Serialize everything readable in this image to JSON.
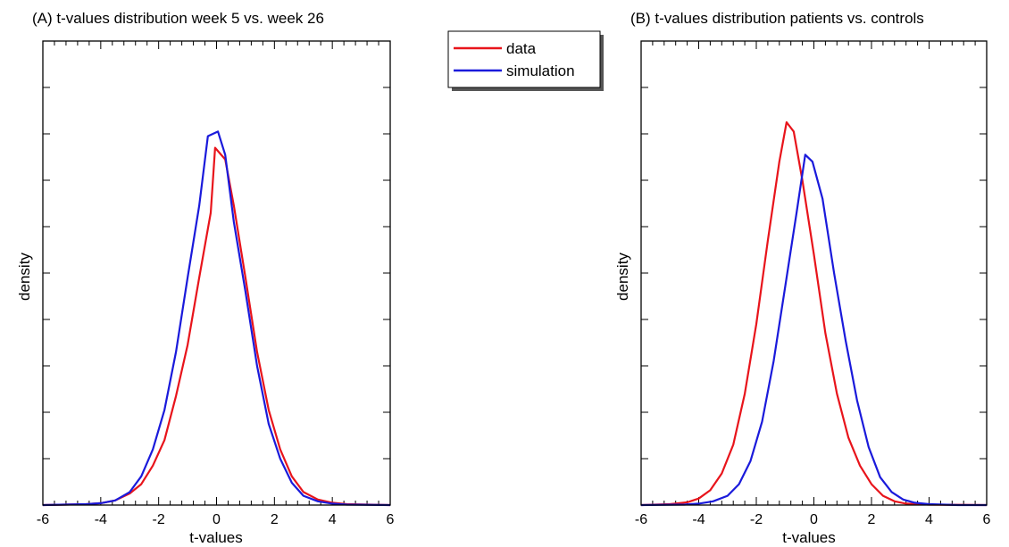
{
  "chart_data": [
    {
      "type": "line",
      "title": "(A) t-values distribution week 5 vs. week 26",
      "xlabel": "t-values",
      "ylabel": "density",
      "xlim": [
        -6,
        6
      ],
      "ylim": [
        0,
        1
      ],
      "x_ticks": [
        "-6",
        "-4",
        "-2",
        "0",
        "2",
        "4",
        "6"
      ],
      "y_tick_labels_shown": false,
      "series": [
        {
          "name": "data",
          "color": "#e8141b",
          "points": [
            [
              -6,
              0
            ],
            [
              -4.5,
              0.002
            ],
            [
              -4,
              0.004
            ],
            [
              -3.5,
              0.01
            ],
            [
              -3,
              0.025
            ],
            [
              -2.6,
              0.045
            ],
            [
              -2.2,
              0.085
            ],
            [
              -1.8,
              0.14
            ],
            [
              -1.4,
              0.235
            ],
            [
              -1.0,
              0.345
            ],
            [
              -0.6,
              0.49
            ],
            [
              -0.2,
              0.63
            ],
            [
              -0.05,
              0.77
            ],
            [
              0.3,
              0.745
            ],
            [
              0.6,
              0.645
            ],
            [
              1.0,
              0.49
            ],
            [
              1.4,
              0.33
            ],
            [
              1.8,
              0.205
            ],
            [
              2.2,
              0.12
            ],
            [
              2.6,
              0.062
            ],
            [
              3.0,
              0.028
            ],
            [
              3.5,
              0.012
            ],
            [
              4.0,
              0.005
            ],
            [
              4.5,
              0.002
            ],
            [
              6,
              0
            ]
          ]
        },
        {
          "name": "simulation",
          "color": "#1a1adb",
          "points": [
            [
              -6,
              0
            ],
            [
              -4.5,
              0.002
            ],
            [
              -4,
              0.004
            ],
            [
              -3.5,
              0.01
            ],
            [
              -3,
              0.028
            ],
            [
              -2.6,
              0.062
            ],
            [
              -2.2,
              0.12
            ],
            [
              -1.8,
              0.205
            ],
            [
              -1.4,
              0.33
            ],
            [
              -1.0,
              0.49
            ],
            [
              -0.6,
              0.645
            ],
            [
              -0.3,
              0.795
            ],
            [
              0.05,
              0.805
            ],
            [
              0.3,
              0.755
            ],
            [
              0.6,
              0.61
            ],
            [
              1.0,
              0.46
            ],
            [
              1.4,
              0.3
            ],
            [
              1.8,
              0.175
            ],
            [
              2.2,
              0.1
            ],
            [
              2.6,
              0.048
            ],
            [
              3.0,
              0.02
            ],
            [
              3.5,
              0.008
            ],
            [
              4.0,
              0.003
            ],
            [
              4.5,
              0.001
            ],
            [
              6,
              0
            ]
          ]
        }
      ]
    },
    {
      "type": "line",
      "title": "(B) t-values distribution patients vs. controls",
      "xlabel": "t-values",
      "ylabel": "density",
      "xlim": [
        -6,
        6
      ],
      "ylim": [
        0,
        1
      ],
      "x_ticks": [
        "-6",
        "-4",
        "-2",
        "0",
        "2",
        "4",
        "6"
      ],
      "y_tick_labels_shown": false,
      "series": [
        {
          "name": "data",
          "color": "#e8141b",
          "points": [
            [
              -6,
              0
            ],
            [
              -5.5,
              0.001
            ],
            [
              -5,
              0.002
            ],
            [
              -4.4,
              0.006
            ],
            [
              -4,
              0.014
            ],
            [
              -3.6,
              0.032
            ],
            [
              -3.2,
              0.068
            ],
            [
              -2.8,
              0.13
            ],
            [
              -2.4,
              0.24
            ],
            [
              -2.0,
              0.39
            ],
            [
              -1.6,
              0.57
            ],
            [
              -1.2,
              0.74
            ],
            [
              -0.95,
              0.825
            ],
            [
              -0.7,
              0.805
            ],
            [
              -0.4,
              0.7
            ],
            [
              0,
              0.54
            ],
            [
              0.4,
              0.37
            ],
            [
              0.8,
              0.24
            ],
            [
              1.2,
              0.145
            ],
            [
              1.6,
              0.085
            ],
            [
              2.0,
              0.045
            ],
            [
              2.4,
              0.02
            ],
            [
              2.8,
              0.008
            ],
            [
              3.2,
              0.003
            ],
            [
              4,
              0.001
            ],
            [
              6,
              0
            ]
          ]
        },
        {
          "name": "simulation",
          "color": "#1a1adb",
          "points": [
            [
              -6,
              0
            ],
            [
              -4.5,
              0.001
            ],
            [
              -4,
              0.003
            ],
            [
              -3.5,
              0.008
            ],
            [
              -3.0,
              0.02
            ],
            [
              -2.6,
              0.045
            ],
            [
              -2.2,
              0.095
            ],
            [
              -1.8,
              0.18
            ],
            [
              -1.4,
              0.31
            ],
            [
              -1.0,
              0.47
            ],
            [
              -0.6,
              0.63
            ],
            [
              -0.3,
              0.755
            ],
            [
              -0.05,
              0.74
            ],
            [
              0.3,
              0.66
            ],
            [
              0.7,
              0.5
            ],
            [
              1.1,
              0.355
            ],
            [
              1.5,
              0.225
            ],
            [
              1.9,
              0.125
            ],
            [
              2.3,
              0.06
            ],
            [
              2.7,
              0.028
            ],
            [
              3.1,
              0.012
            ],
            [
              3.5,
              0.005
            ],
            [
              4,
              0.002
            ],
            [
              5,
              0
            ],
            [
              6,
              0
            ]
          ]
        }
      ]
    }
  ],
  "legend": {
    "placement": "top-center",
    "entries": [
      {
        "label": "data",
        "color": "#e8141b"
      },
      {
        "label": "simulation",
        "color": "#1a1adb"
      }
    ]
  }
}
